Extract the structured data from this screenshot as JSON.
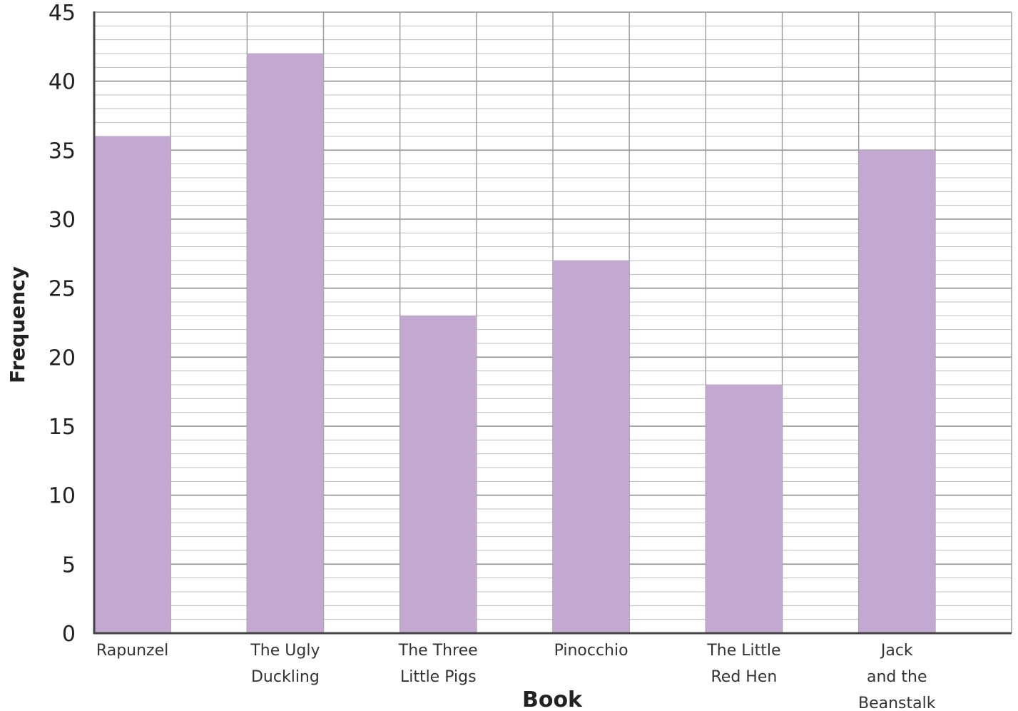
{
  "chart_data": {
    "type": "bar",
    "title": "",
    "xlabel": "Book",
    "ylabel": "Frequency",
    "categories": [
      [
        "Rapunzel"
      ],
      [
        "The Ugly",
        "Duckling"
      ],
      [
        "The Three",
        "Little Pigs"
      ],
      [
        "Pinocchio"
      ],
      [
        "The Little",
        "Red Hen"
      ],
      [
        "Jack",
        "and the",
        "Beanstalk"
      ]
    ],
    "values": [
      36,
      42,
      23,
      27,
      18,
      35
    ],
    "ylim": [
      0,
      45
    ],
    "yticks": [
      0,
      5,
      10,
      15,
      20,
      25,
      30,
      35,
      40,
      45
    ],
    "minor_step": 1,
    "grid": true,
    "bar_color": "#c3a9d2",
    "grid_color": "#bdbdbd",
    "axis_color": "#444444"
  }
}
